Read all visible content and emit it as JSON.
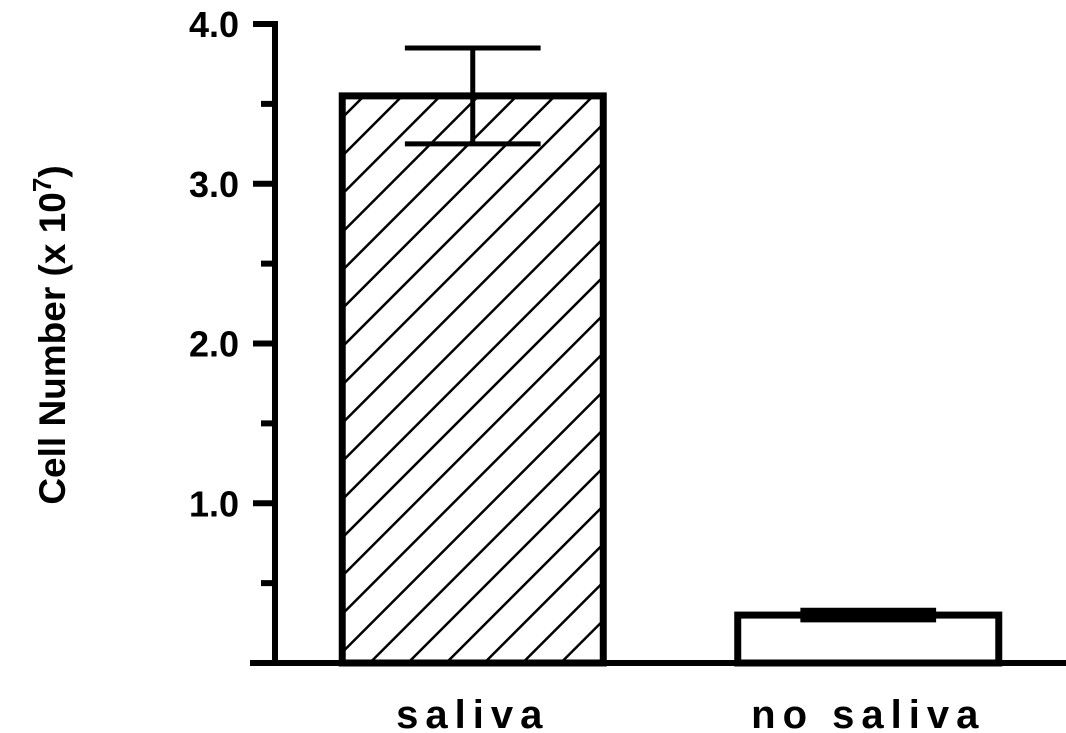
{
  "chart_data": {
    "type": "bar",
    "title": "",
    "xlabel": "",
    "ylabel": {
      "prefix": "Cell Number (x 10",
      "exponent": "7",
      "suffix": ")"
    },
    "categories": [
      "saliva",
      "no saliva"
    ],
    "values": [
      3.55,
      0.3
    ],
    "errors": [
      0.3,
      0.03
    ],
    "patterns": [
      "diagonal-hatch",
      "none"
    ],
    "ylim": [
      0,
      4.0
    ],
    "yticks_major": [
      1.0,
      2.0,
      3.0,
      4.0
    ],
    "ytick_labels": [
      "1.0",
      "2.0",
      "3.0",
      "4.0"
    ],
    "yticks_minor": [
      0.5,
      1.5,
      2.5,
      3.5
    ],
    "grid": false,
    "colors": {
      "stroke": "#000000",
      "fill": "#ffffff"
    }
  }
}
